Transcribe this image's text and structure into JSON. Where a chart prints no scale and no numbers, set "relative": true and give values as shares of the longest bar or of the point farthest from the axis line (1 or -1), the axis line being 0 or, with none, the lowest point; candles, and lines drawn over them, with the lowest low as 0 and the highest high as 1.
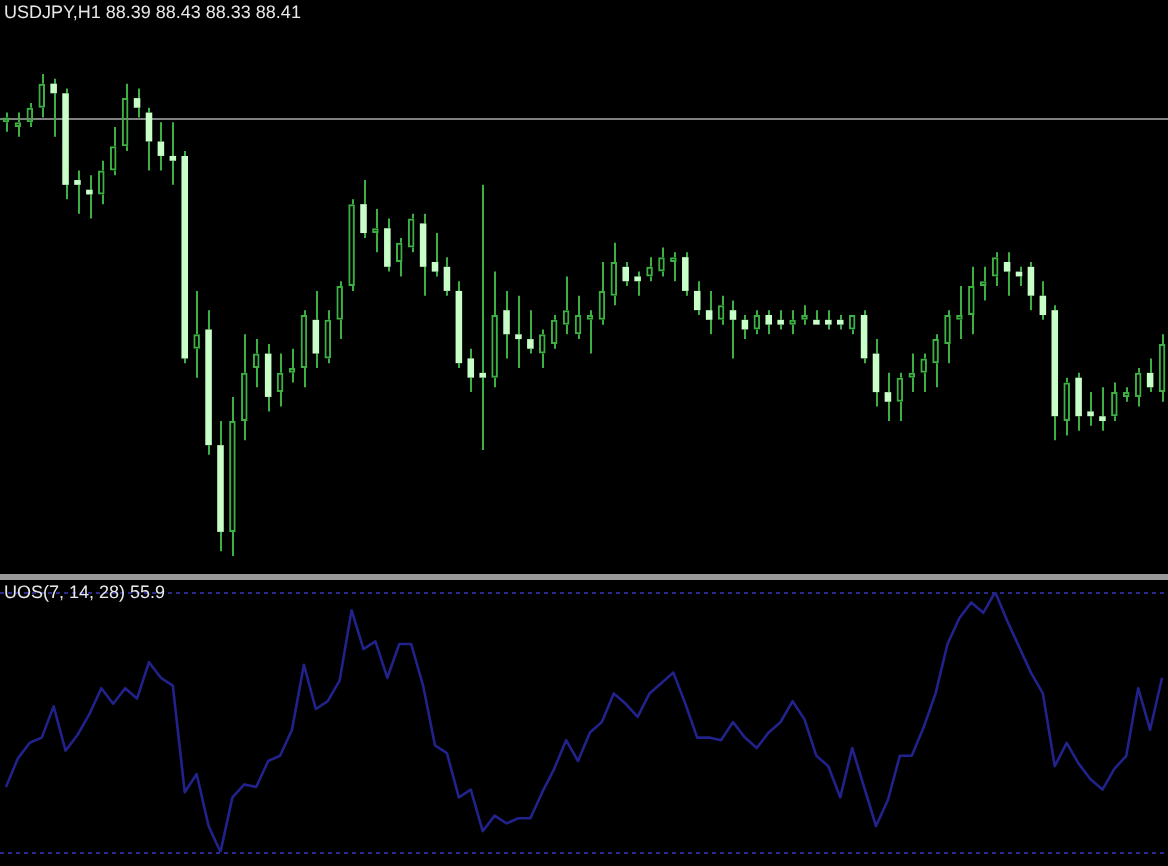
{
  "chart_data": [
    {
      "type": "candlestick",
      "title": "USDJPY,H1 88.39 88.43 88.33 88.41",
      "relative": true,
      "color": "#3cb043",
      "colors": [
        "#3cb043",
        "#3cb043",
        "#3cb043",
        "#3cb043",
        "#c8ffc8",
        "#c8ffc8",
        "#c8ffc8",
        "#c8ffc8",
        "#3cb043",
        "#3cb043",
        "#3cb043",
        "#c8ffc8",
        "#c8ffc8",
        "#c8ffc8",
        "#c8ffc8",
        "#c8ffc8",
        "#3cb043",
        "#c8ffc8",
        "#c8ffc8",
        "#3cb043",
        "#3cb043",
        "#3cb043",
        "#c8ffc8",
        "#3cb043",
        "#3cb043",
        "#3cb043",
        "#c8ffc8",
        "#3cb043",
        "#3cb043",
        "#3cb043",
        "#c8ffc8",
        "#3cb043",
        "#c8ffc8",
        "#3cb043",
        "#3cb043",
        "#c8ffc8",
        "#c8ffc8",
        "#c8ffc8",
        "#c8ffc8",
        "#c8ffc8",
        "#c8ffc8",
        "#3cb043",
        "#c8ffc8",
        "#c8ffc8",
        "#c8ffc8",
        "#3cb043",
        "#3cb043",
        "#3cb043",
        "#3cb043",
        "#3cb043",
        "#3cb043",
        "#3cb043",
        "#c8ffc8",
        "#c8ffc8",
        "#3cb043",
        "#3cb043",
        "#3cb043",
        "#c8ffc8",
        "#c8ffc8",
        "#c8ffc8",
        "#3cb043",
        "#c8ffc8",
        "#c8ffc8",
        "#3cb043",
        "#c8ffc8",
        "#c8ffc8",
        "#3cb043",
        "#3cb043",
        "#c8ffc8",
        "#c8ffc8",
        "#c8ffc8",
        "#3cb043",
        "#c8ffc8",
        "#c8ffc8",
        "#c8ffc8",
        "#3cb043",
        "#3cb043",
        "#3cb043",
        "#3cb043",
        "#3cb043",
        "#3cb043",
        "#3cb043",
        "#3cb043",
        "#3cb043",
        "#c8ffc8",
        "#c8ffc8",
        "#c8ffc8",
        "#c8ffc8",
        "#c8ffc8",
        "#3cb043",
        "#c8ffc8",
        "#c8ffc8",
        "#c8ffc8",
        "#3cb043",
        "#3cb043",
        "#3cb043",
        "#c8ffc8",
        "#3cb043"
      ],
      "categories": [
        null,
        null,
        null,
        null,
        null,
        null,
        null,
        null,
        null,
        null,
        null,
        null,
        null,
        null,
        null,
        null,
        null,
        null,
        null,
        null,
        null,
        null,
        null,
        null,
        null,
        null,
        null,
        null,
        null,
        null,
        null,
        null,
        null,
        null,
        null,
        null,
        null,
        null,
        null,
        null,
        null,
        null,
        null,
        null,
        null,
        null,
        null,
        null,
        null,
        null,
        null,
        null,
        null,
        null,
        null,
        null,
        null,
        null,
        null,
        null,
        null,
        null,
        null,
        null,
        null,
        null,
        null,
        null,
        null,
        null,
        null,
        null,
        null,
        null,
        null,
        null,
        null,
        null,
        null,
        null,
        null,
        null,
        null,
        null,
        null,
        null,
        null,
        null,
        null,
        null,
        null,
        null,
        null,
        null,
        null,
        null,
        null,
        null
      ],
      "ohlc": [
        [
          0.9,
          0.92,
          0.88,
          0.91
        ],
        [
          0.89,
          0.92,
          0.87,
          0.9
        ],
        [
          0.9,
          0.94,
          0.89,
          0.93
        ],
        [
          0.93,
          1,
          0.91,
          0.98
        ],
        [
          0.98,
          0.99,
          0.87,
          0.96
        ],
        [
          0.96,
          0.97,
          0.74,
          0.77
        ],
        [
          0.78,
          0.8,
          0.71,
          0.77
        ],
        [
          0.76,
          0.79,
          0.7,
          0.75
        ],
        [
          0.75,
          0.82,
          0.73,
          0.8
        ],
        [
          0.8,
          0.89,
          0.79,
          0.85
        ],
        [
          0.85,
          0.98,
          0.84,
          0.95
        ],
        [
          0.95,
          0.97,
          0.91,
          0.93
        ],
        [
          0.92,
          0.93,
          0.8,
          0.86
        ],
        [
          0.86,
          0.9,
          0.8,
          0.83
        ],
        [
          0.83,
          0.9,
          0.77,
          0.82
        ],
        [
          0.83,
          0.84,
          0.4,
          0.41
        ],
        [
          0.43,
          0.55,
          0.37,
          0.46
        ],
        [
          0.47,
          0.51,
          0.21,
          0.23
        ],
        [
          0.23,
          0.28,
          0.01,
          0.05
        ],
        [
          0.05,
          0.33,
          0,
          0.28
        ],
        [
          0.28,
          0.46,
          0.24,
          0.38
        ],
        [
          0.39,
          0.45,
          0.35,
          0.42
        ],
        [
          0.42,
          0.44,
          0.3,
          0.33
        ],
        [
          0.34,
          0.42,
          0.31,
          0.38
        ],
        [
          0.38,
          0.43,
          0.36,
          0.39
        ],
        [
          0.39,
          0.51,
          0.35,
          0.5
        ],
        [
          0.49,
          0.55,
          0.39,
          0.42
        ],
        [
          0.41,
          0.51,
          0.4,
          0.49
        ],
        [
          0.49,
          0.57,
          0.45,
          0.56
        ],
        [
          0.56,
          0.74,
          0.55,
          0.73
        ],
        [
          0.73,
          0.78,
          0.66,
          0.67
        ],
        [
          0.67,
          0.72,
          0.63,
          0.68
        ],
        [
          0.68,
          0.7,
          0.59,
          0.6
        ],
        [
          0.61,
          0.66,
          0.58,
          0.65
        ],
        [
          0.64,
          0.71,
          0.63,
          0.7
        ],
        [
          0.69,
          0.71,
          0.54,
          0.6
        ],
        [
          0.61,
          0.67,
          0.58,
          0.59
        ],
        [
          0.6,
          0.62,
          0.54,
          0.55
        ],
        [
          0.55,
          0.57,
          0.39,
          0.4
        ],
        [
          0.41,
          0.43,
          0.34,
          0.37
        ],
        [
          0.38,
          0.77,
          0.22,
          0.37
        ],
        [
          0.37,
          0.59,
          0.35,
          0.5
        ],
        [
          0.51,
          0.55,
          0.41,
          0.46
        ],
        [
          0.46,
          0.54,
          0.39,
          0.45
        ],
        [
          0.45,
          0.51,
          0.42,
          0.43
        ],
        [
          0.42,
          0.47,
          0.39,
          0.46
        ],
        [
          0.44,
          0.5,
          0.43,
          0.49
        ],
        [
          0.48,
          0.58,
          0.46,
          0.51
        ],
        [
          0.46,
          0.54,
          0.45,
          0.5
        ],
        [
          0.49,
          0.51,
          0.42,
          0.5
        ],
        [
          0.49,
          0.61,
          0.48,
          0.55
        ],
        [
          0.54,
          0.65,
          0.52,
          0.61
        ],
        [
          0.6,
          0.61,
          0.56,
          0.57
        ],
        [
          0.58,
          0.59,
          0.54,
          0.57
        ],
        [
          0.58,
          0.62,
          0.57,
          0.6
        ],
        [
          0.59,
          0.64,
          0.58,
          0.62
        ],
        [
          0.61,
          0.63,
          0.57,
          0.62
        ],
        [
          0.62,
          0.63,
          0.54,
          0.55
        ],
        [
          0.55,
          0.57,
          0.5,
          0.51
        ],
        [
          0.51,
          0.55,
          0.46,
          0.49
        ],
        [
          0.49,
          0.54,
          0.48,
          0.52
        ],
        [
          0.51,
          0.53,
          0.41,
          0.49
        ],
        [
          0.49,
          0.5,
          0.45,
          0.47
        ],
        [
          0.47,
          0.51,
          0.46,
          0.5
        ],
        [
          0.5,
          0.51,
          0.46,
          0.48
        ],
        [
          0.49,
          0.51,
          0.47,
          0.48
        ],
        [
          0.48,
          0.51,
          0.46,
          0.49
        ],
        [
          0.49,
          0.52,
          0.48,
          0.5
        ],
        [
          0.49,
          0.51,
          0.48,
          0.48
        ],
        [
          0.49,
          0.51,
          0.47,
          0.48
        ],
        [
          0.49,
          0.5,
          0.47,
          0.48
        ],
        [
          0.47,
          0.5,
          0.46,
          0.5
        ],
        [
          0.5,
          0.51,
          0.4,
          0.41
        ],
        [
          0.42,
          0.45,
          0.31,
          0.34
        ],
        [
          0.34,
          0.38,
          0.28,
          0.32
        ],
        [
          0.32,
          0.38,
          0.28,
          0.37
        ],
        [
          0.37,
          0.42,
          0.34,
          0.38
        ],
        [
          0.38,
          0.42,
          0.34,
          0.41
        ],
        [
          0.4,
          0.46,
          0.35,
          0.45
        ],
        [
          0.44,
          0.51,
          0.4,
          0.5
        ],
        [
          0.49,
          0.56,
          0.45,
          0.5
        ],
        [
          0.5,
          0.6,
          0.46,
          0.56
        ],
        [
          0.56,
          0.6,
          0.53,
          0.57
        ],
        [
          0.58,
          0.63,
          0.56,
          0.62
        ],
        [
          0.61,
          0.63,
          0.54,
          0.59
        ],
        [
          0.59,
          0.6,
          0.56,
          0.58
        ],
        [
          0.6,
          0.61,
          0.51,
          0.54
        ],
        [
          0.54,
          0.57,
          0.49,
          0.5
        ],
        [
          0.51,
          0.52,
          0.24,
          0.29
        ],
        [
          0.28,
          0.37,
          0.25,
          0.36
        ],
        [
          0.37,
          0.38,
          0.26,
          0.29
        ],
        [
          0.3,
          0.34,
          0.27,
          0.29
        ],
        [
          0.29,
          0.35,
          0.26,
          0.28
        ],
        [
          0.29,
          0.36,
          0.28,
          0.34
        ],
        [
          0.33,
          0.35,
          0.32,
          0.34
        ],
        [
          0.33,
          0.39,
          0.31,
          0.38
        ],
        [
          0.38,
          0.41,
          0.34,
          0.35
        ],
        [
          0.34,
          0.46,
          0.32,
          0.44
        ]
      ],
      "ref_lines": [
        {
          "axis": "y",
          "value": 0.91,
          "color": "#808080",
          "line_style": "solid"
        }
      ]
    },
    {
      "type": "line",
      "title": "UOS(7, 14, 28) 55.9",
      "relative": true,
      "marker": "none",
      "categories": [
        null,
        null,
        null,
        null,
        null,
        null,
        null,
        null,
        null,
        null,
        null,
        null,
        null,
        null,
        null,
        null,
        null,
        null,
        null,
        null,
        null,
        null,
        null,
        null,
        null,
        null,
        null,
        null,
        null,
        null,
        null,
        null,
        null,
        null,
        null,
        null,
        null,
        null,
        null,
        null,
        null,
        null,
        null,
        null,
        null,
        null,
        null,
        null,
        null,
        null,
        null,
        null,
        null,
        null,
        null,
        null,
        null,
        null,
        null,
        null,
        null,
        null,
        null,
        null,
        null,
        null,
        null,
        null,
        null,
        null,
        null,
        null,
        null,
        null,
        null,
        null,
        null,
        null,
        null,
        null,
        null,
        null,
        null,
        null,
        null,
        null,
        null,
        null,
        null,
        null,
        null,
        null,
        null,
        null,
        null,
        null,
        null,
        null
      ],
      "series": [
        {
          "color": "#22228c",
          "values": [
            0.25,
            0.36,
            0.42,
            0.44,
            0.56,
            0.39,
            0.45,
            0.53,
            0.63,
            0.57,
            0.63,
            0.59,
            0.73,
            0.67,
            0.64,
            0.23,
            0.3,
            0.1,
            0,
            0.21,
            0.26,
            0.25,
            0.35,
            0.37,
            0.47,
            0.72,
            0.55,
            0.58,
            0.66,
            0.93,
            0.78,
            0.81,
            0.67,
            0.8,
            0.8,
            0.64,
            0.41,
            0.38,
            0.21,
            0.24,
            0.08,
            0.14,
            0.11,
            0.13,
            0.13,
            0.23,
            0.32,
            0.43,
            0.35,
            0.46,
            0.5,
            0.61,
            0.57,
            0.52,
            0.61,
            0.65,
            0.69,
            0.57,
            0.44,
            0.44,
            0.43,
            0.5,
            0.44,
            0.4,
            0.46,
            0.5,
            0.58,
            0.51,
            0.37,
            0.33,
            0.21,
            0.4,
            0.25,
            0.1,
            0.2,
            0.37,
            0.37,
            0.48,
            0.61,
            0.8,
            0.9,
            0.96,
            0.92,
            1,
            0.89,
            0.79,
            0.69,
            0.61,
            0.33,
            0.42,
            0.34,
            0.28,
            0.24,
            0.32,
            0.37,
            0.63,
            0.47,
            0.67
          ]
        }
      ],
      "ref_lines": [
        {
          "axis": "y",
          "value": 1,
          "color": "#2a2a8a",
          "line_style": "dashed"
        },
        {
          "axis": "y",
          "value": 0,
          "color": "#2a2a8a",
          "line_style": "dashed"
        }
      ]
    }
  ]
}
